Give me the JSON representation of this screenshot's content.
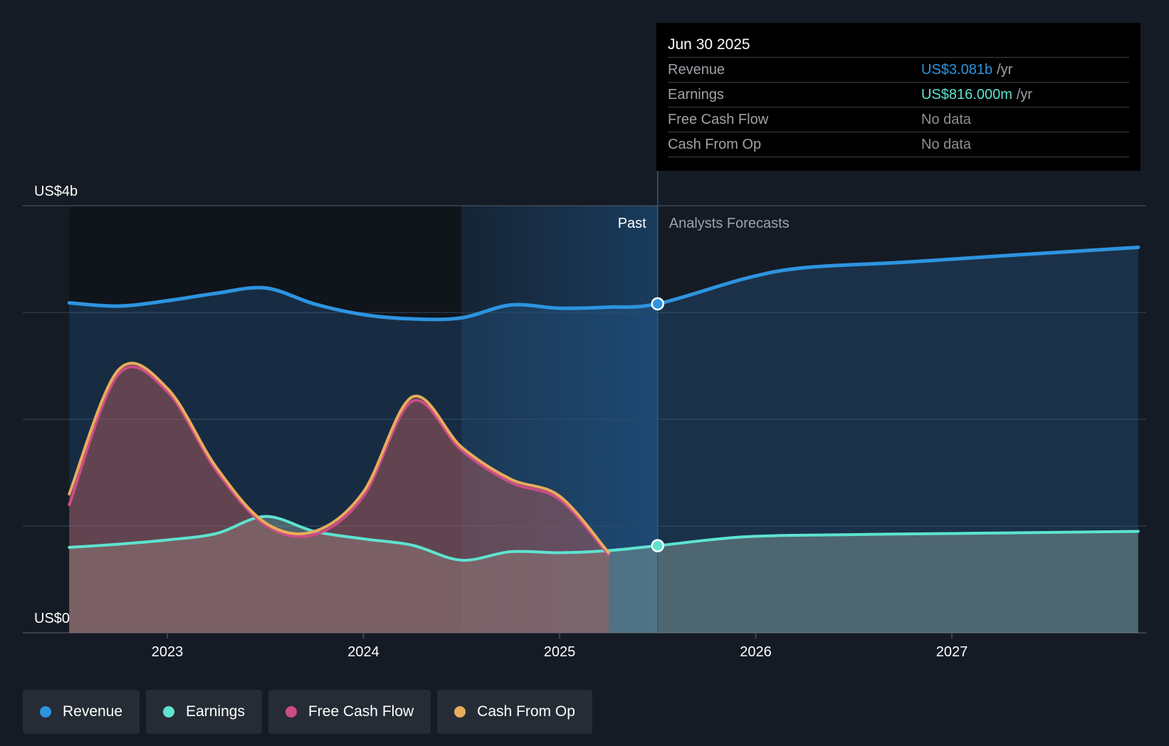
{
  "tooltip": {
    "date": "Jun 30 2025",
    "rows": [
      {
        "label": "Revenue",
        "value": "US$3.081b",
        "suffix": "/yr",
        "color": "#2d94e0"
      },
      {
        "label": "Earnings",
        "value": "US$816.000m",
        "suffix": "/yr",
        "color": "#5ee3d0"
      },
      {
        "label": "Free Cash Flow",
        "value": "No data",
        "suffix": "",
        "color": "#8c8f93"
      },
      {
        "label": "Cash From Op",
        "value": "No data",
        "suffix": "",
        "color": "#8c8f93"
      }
    ]
  },
  "legend": [
    {
      "label": "Revenue",
      "color": "#2d94e0"
    },
    {
      "label": "Earnings",
      "color": "#5ee3d0"
    },
    {
      "label": "Free Cash Flow",
      "color": "#cc4d86"
    },
    {
      "label": "Cash From Op",
      "color": "#e8ac5c"
    }
  ],
  "chart_data": {
    "type": "area",
    "title": "",
    "xlabel": "",
    "ylabel": "",
    "ylim": [
      0,
      4
    ],
    "y_unit": "US$ billions",
    "y_tick_labels": [
      {
        "value": 4,
        "label": "US$4b"
      },
      {
        "value": 0,
        "label": "US$0"
      }
    ],
    "gridlines_y": [
      1,
      2,
      3,
      4
    ],
    "x_range": [
      2022.25,
      2027.95
    ],
    "x_ticks": [
      2023,
      2024,
      2025,
      2026,
      2027
    ],
    "x_tick_labels": [
      "2023",
      "2024",
      "2025",
      "2026",
      "2027"
    ],
    "past_label": "Past",
    "forecast_label": "Analysts Forecasts",
    "divider_x": 2025.5,
    "shade_start_x": 2024.5,
    "highlight_points": [
      {
        "series": "Revenue",
        "x": 2025.5,
        "y": 3.081
      },
      {
        "series": "Earnings",
        "x": 2025.5,
        "y": 0.816
      }
    ],
    "series": [
      {
        "name": "Revenue",
        "color": "#2d94e0",
        "points": [
          [
            2022.5,
            3.09
          ],
          [
            2022.75,
            3.06
          ],
          [
            2023.0,
            3.11
          ],
          [
            2023.25,
            3.18
          ],
          [
            2023.5,
            3.23
          ],
          [
            2023.75,
            3.08
          ],
          [
            2024.0,
            2.98
          ],
          [
            2024.25,
            2.94
          ],
          [
            2024.5,
            2.95
          ],
          [
            2024.75,
            3.07
          ],
          [
            2025.0,
            3.04
          ],
          [
            2025.25,
            3.05
          ],
          [
            2025.5,
            3.081
          ],
          [
            2025.95,
            3.32
          ],
          [
            2026.25,
            3.42
          ],
          [
            2026.75,
            3.47
          ],
          [
            2027.25,
            3.53
          ],
          [
            2027.95,
            3.61
          ]
        ]
      },
      {
        "name": "Earnings",
        "color": "#5ee3d0",
        "points": [
          [
            2022.5,
            0.8
          ],
          [
            2022.75,
            0.83
          ],
          [
            2023.0,
            0.87
          ],
          [
            2023.25,
            0.93
          ],
          [
            2023.5,
            1.09
          ],
          [
            2023.75,
            0.95
          ],
          [
            2024.0,
            0.88
          ],
          [
            2024.25,
            0.82
          ],
          [
            2024.5,
            0.68
          ],
          [
            2024.75,
            0.76
          ],
          [
            2025.0,
            0.75
          ],
          [
            2025.25,
            0.77
          ],
          [
            2025.5,
            0.816
          ],
          [
            2025.95,
            0.9
          ],
          [
            2026.5,
            0.92
          ],
          [
            2027.0,
            0.93
          ],
          [
            2027.95,
            0.95
          ]
        ]
      },
      {
        "name": "Free Cash Flow",
        "color": "#cc4d86",
        "points": [
          [
            2022.5,
            1.2
          ],
          [
            2022.75,
            2.42
          ],
          [
            2023.0,
            2.26
          ],
          [
            2023.25,
            1.52
          ],
          [
            2023.5,
            1.01
          ],
          [
            2023.75,
            0.92
          ],
          [
            2024.0,
            1.28
          ],
          [
            2024.25,
            2.17
          ],
          [
            2024.5,
            1.71
          ],
          [
            2024.75,
            1.41
          ],
          [
            2025.0,
            1.25
          ],
          [
            2025.25,
            0.73
          ]
        ]
      },
      {
        "name": "Cash From Op",
        "color": "#e8ac5c",
        "points": [
          [
            2022.5,
            1.3
          ],
          [
            2022.75,
            2.46
          ],
          [
            2023.0,
            2.29
          ],
          [
            2023.25,
            1.55
          ],
          [
            2023.5,
            1.03
          ],
          [
            2023.75,
            0.95
          ],
          [
            2024.0,
            1.32
          ],
          [
            2024.25,
            2.21
          ],
          [
            2024.5,
            1.74
          ],
          [
            2024.75,
            1.44
          ],
          [
            2025.0,
            1.28
          ],
          [
            2025.25,
            0.75
          ]
        ]
      }
    ]
  }
}
